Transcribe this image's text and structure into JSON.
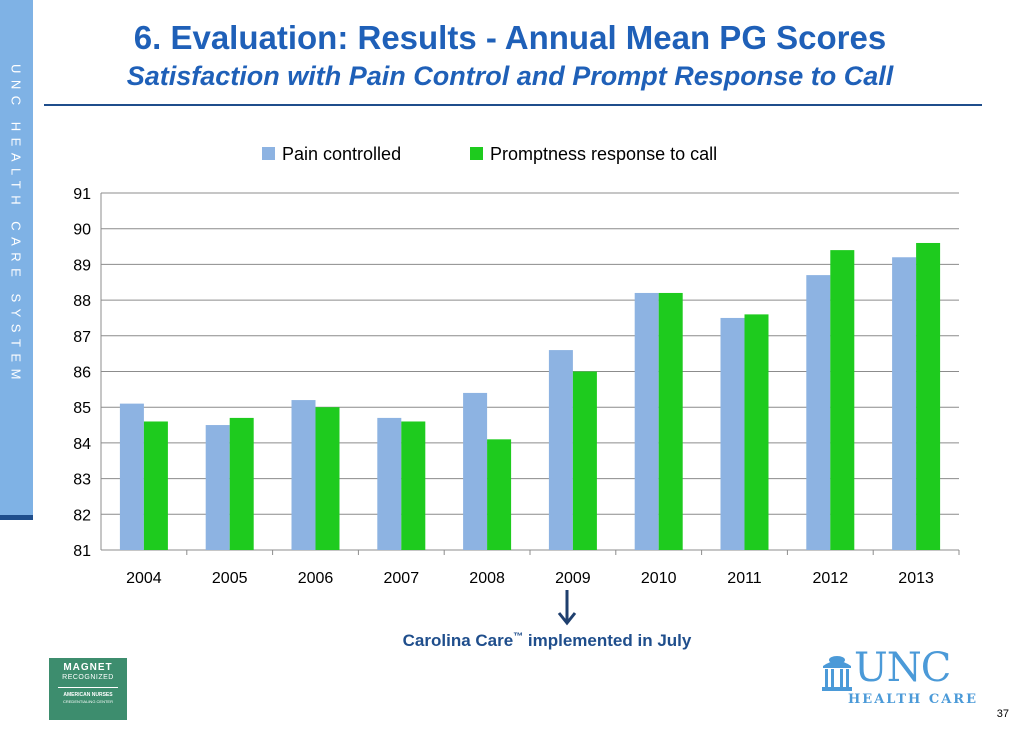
{
  "side_text": "UNC HEALTH CARE SYSTEM",
  "title": "6. Evaluation: Results - Annual Mean PG Scores",
  "subtitle": "Satisfaction with Pain Control and Prompt Response to Call",
  "annotation": {
    "text": "Carolina Care",
    "tm": "™",
    "rest": " implemented in July"
  },
  "magnet_badge": {
    "line1": "MAGNET",
    "line2": "RECOGNIZED",
    "line3": "AMERICAN NURSES",
    "line4": "CREDENTIALING CENTER"
  },
  "unc_logo": {
    "word": "UNC",
    "sub": "HEALTH CARE"
  },
  "page_number": "37",
  "colors": {
    "pain": "#8db3e2",
    "prompt": "#1ecb1e",
    "title": "#1f60b8",
    "side_band": "#7fb2e5"
  },
  "chart_data": {
    "type": "bar",
    "categories": [
      "2004",
      "2005",
      "2006",
      "2007",
      "2008",
      "2009",
      "2010",
      "2011",
      "2012",
      "2013"
    ],
    "series": [
      {
        "name": "Pain controlled",
        "color": "#8db3e2",
        "values": [
          85.1,
          84.5,
          85.2,
          84.7,
          85.4,
          86.6,
          88.2,
          87.5,
          88.7,
          89.2
        ]
      },
      {
        "name": "Promptness response to call",
        "color": "#1ecb1e",
        "values": [
          84.6,
          84.7,
          85.0,
          84.6,
          84.1,
          86.0,
          88.2,
          87.6,
          89.4,
          89.6
        ]
      }
    ],
    "yticks": [
      "81",
      "82",
      "83",
      "84",
      "85",
      "86",
      "87",
      "88",
      "89",
      "90",
      "91"
    ],
    "ylim": [
      81,
      91
    ],
    "grid": true,
    "legend": "top"
  }
}
